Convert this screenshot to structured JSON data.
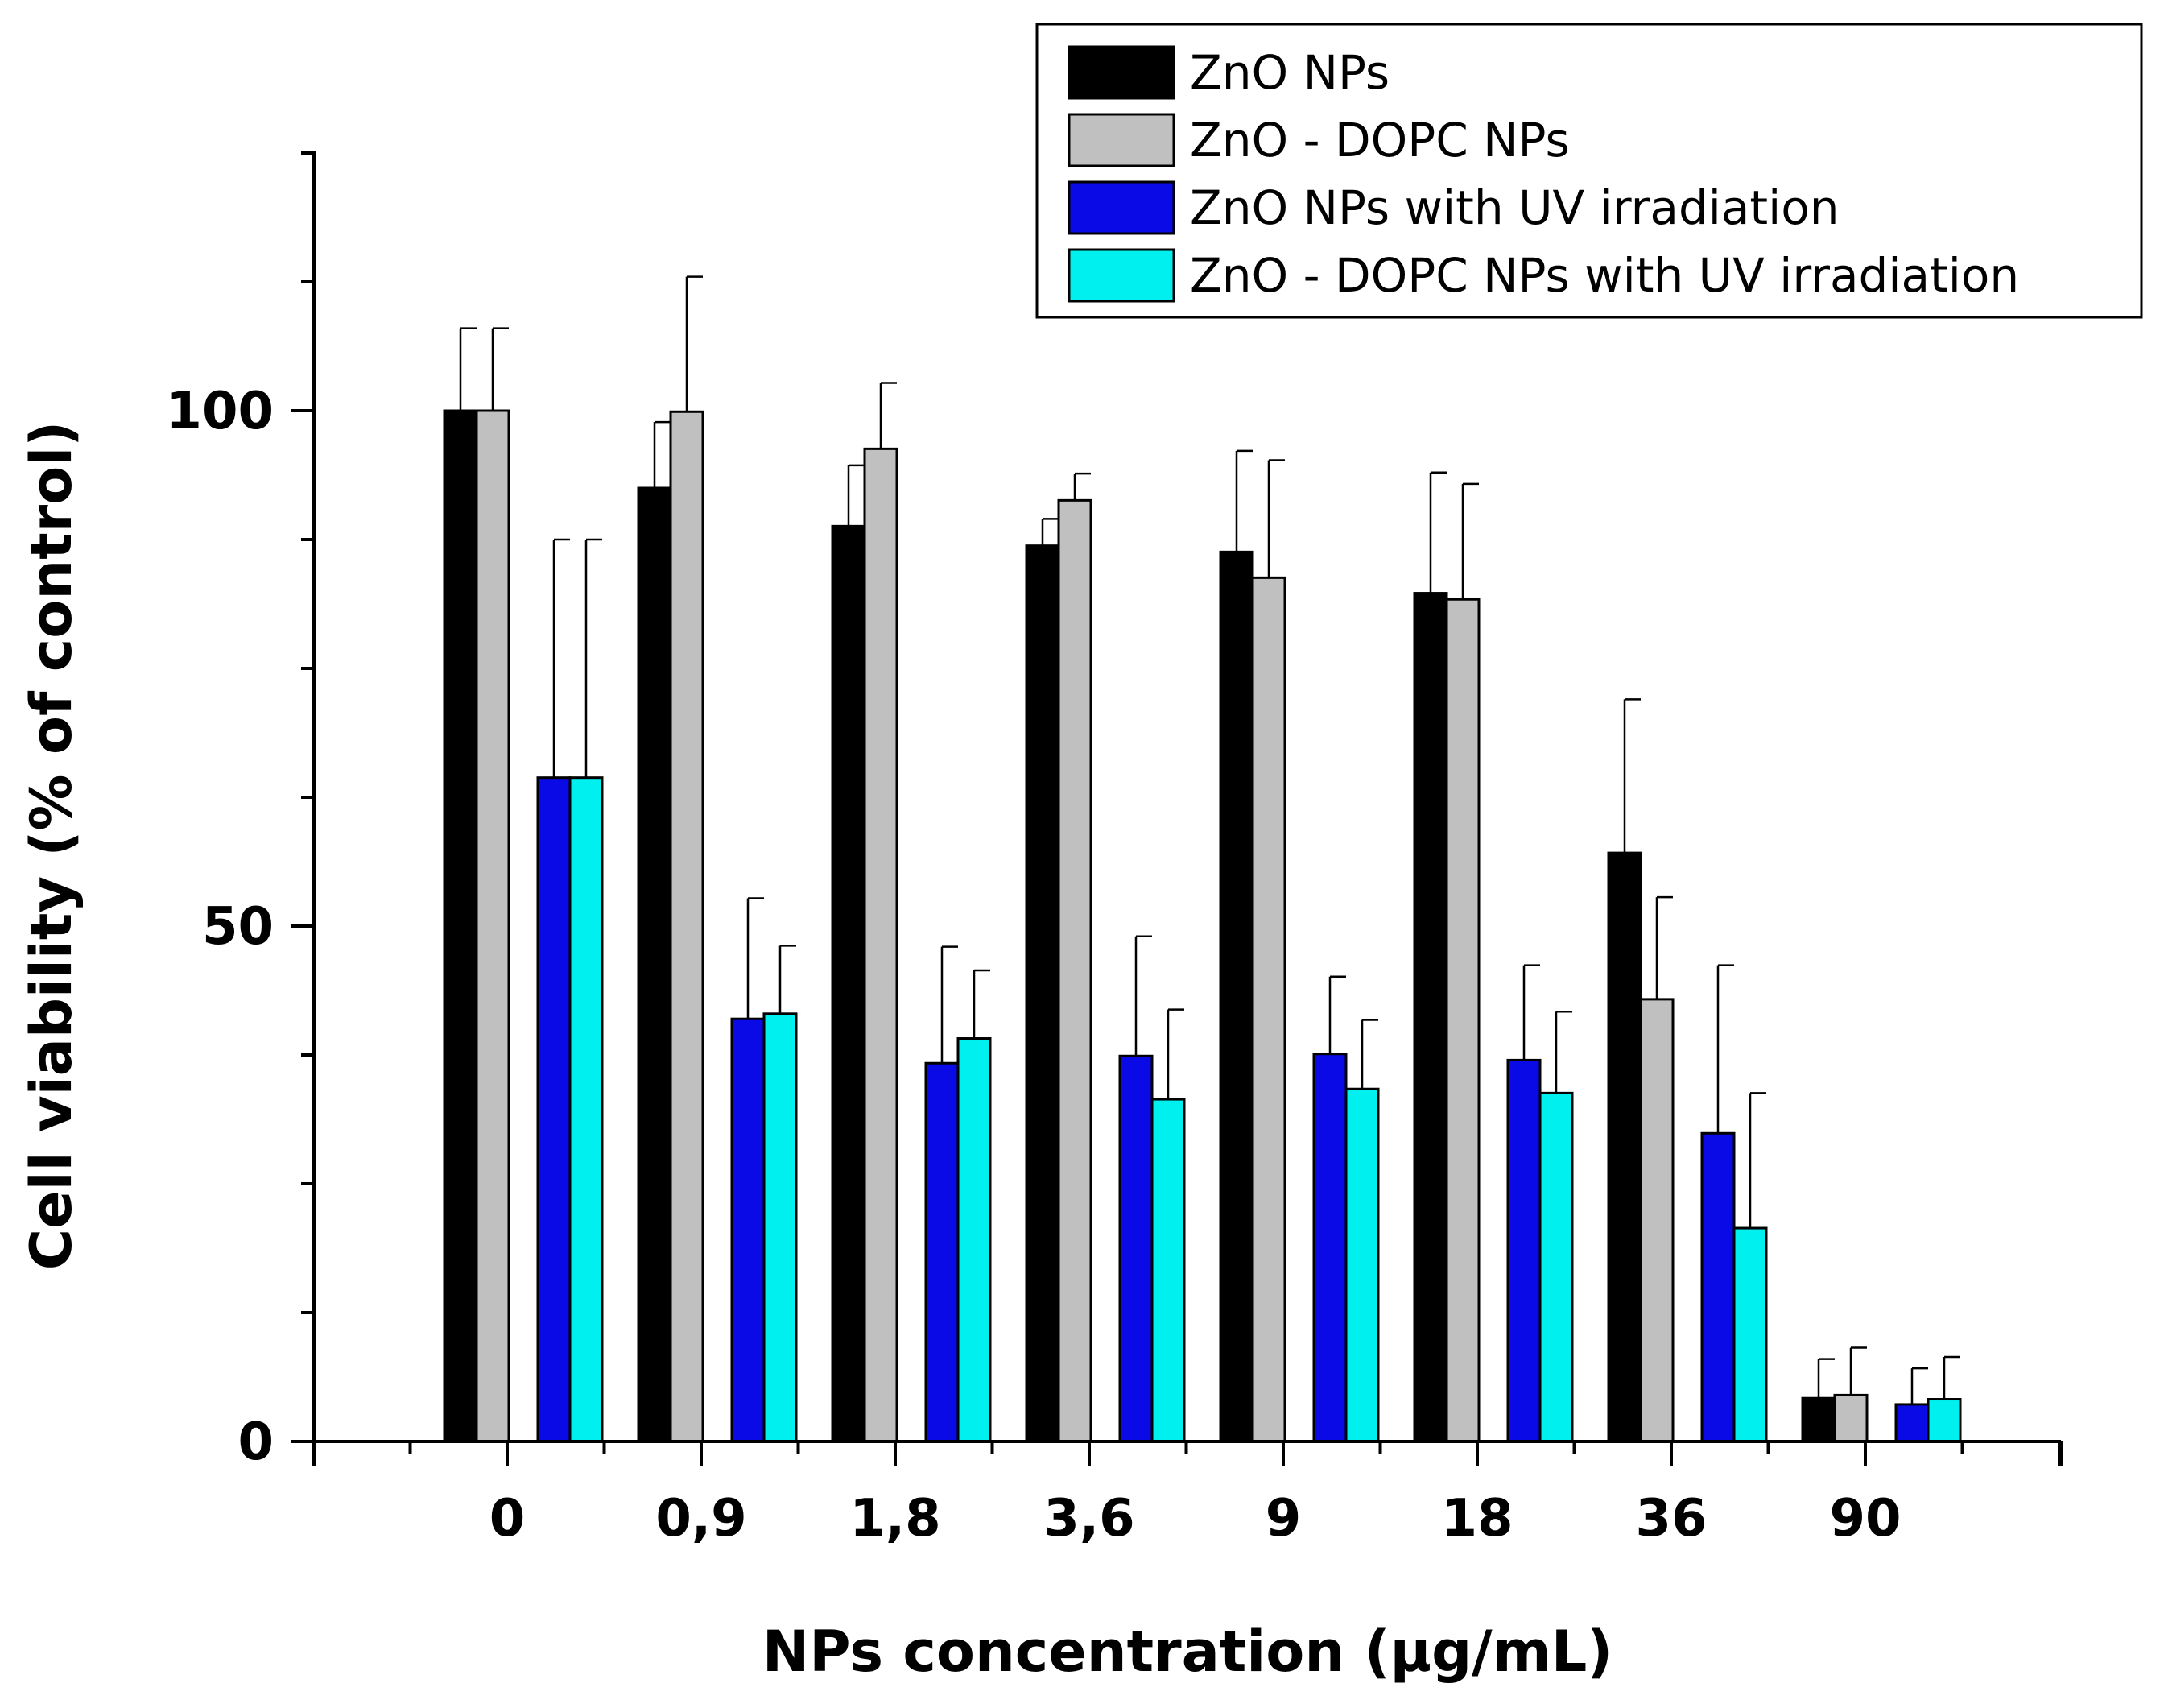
{
  "chart_data": {
    "type": "bar",
    "title": "",
    "xlabel": "NPs concentration (µg/mL)",
    "ylabel": "Cell viability (% of control)",
    "ylim": [
      0,
      125
    ],
    "yticks": [
      0,
      50,
      100
    ],
    "grid": false,
    "legend_position": "top-right",
    "categories": [
      "0",
      "0,9",
      "1,8",
      "3,6",
      "9",
      "18",
      "36",
      "90"
    ],
    "series": [
      {
        "name": "ZnO NPs",
        "color": "#000000",
        "values": [
          100,
          92.5,
          88.8,
          86.9,
          86.3,
          82.3,
          57.1,
          4.2
        ],
        "errors": [
          8,
          6.4,
          5.9,
          2.6,
          9.8,
          11.7,
          14.9,
          3.8
        ]
      },
      {
        "name": "ZnO - DOPC NPs",
        "color": "#c0c0c0",
        "values": [
          100,
          99.9,
          96.3,
          91.3,
          83.8,
          81.7,
          42.9,
          4.5
        ],
        "errors": [
          8,
          13.1,
          6.4,
          2.6,
          11.4,
          11.2,
          9.9,
          4.6
        ]
      },
      {
        "name": "ZnO NPs with UV irradiation",
        "color": "#0a0ae6",
        "values": [
          64.4,
          41,
          36.7,
          37.4,
          37.6,
          37,
          29.9,
          3.6
        ],
        "errors": [
          23.1,
          11.7,
          11.3,
          11.6,
          7.5,
          9.2,
          16.3,
          3.5
        ]
      },
      {
        "name": "ZnO - DOPC NPs with UV irradiation",
        "color": "#00f0f0",
        "values": [
          64.4,
          41.5,
          39.1,
          33.2,
          34.2,
          33.8,
          20.7,
          4.1
        ],
        "errors": [
          23.1,
          6.6,
          6.6,
          8.7,
          6.7,
          7.9,
          13.1,
          4.1
        ]
      }
    ]
  }
}
